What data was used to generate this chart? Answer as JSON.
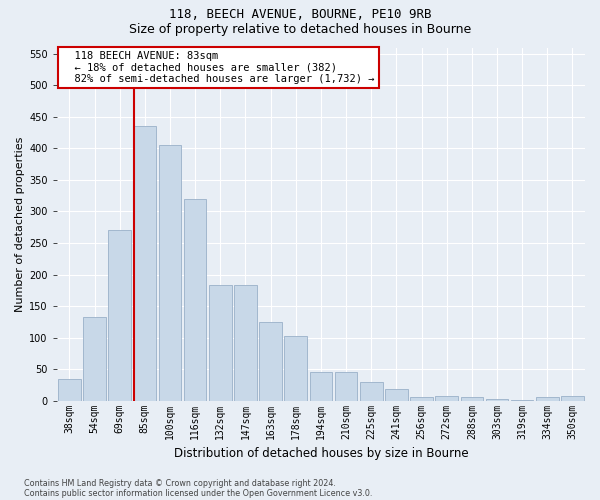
{
  "title1": "118, BEECH AVENUE, BOURNE, PE10 9RB",
  "title2": "Size of property relative to detached houses in Bourne",
  "xlabel": "Distribution of detached houses by size in Bourne",
  "ylabel": "Number of detached properties",
  "footer1": "Contains HM Land Registry data © Crown copyright and database right 2024.",
  "footer2": "Contains public sector information licensed under the Open Government Licence v3.0.",
  "annotation_line1": "  118 BEECH AVENUE: 83sqm",
  "annotation_line2": "  ← 18% of detached houses are smaller (382)",
  "annotation_line3": "  82% of semi-detached houses are larger (1,732) →",
  "bar_color": "#c8d8e8",
  "bar_edge_color": "#9ab0c8",
  "vline_color": "#cc0000",
  "vline_x_idx": 3,
  "categories": [
    "38sqm",
    "54sqm",
    "69sqm",
    "85sqm",
    "100sqm",
    "116sqm",
    "132sqm",
    "147sqm",
    "163sqm",
    "178sqm",
    "194sqm",
    "210sqm",
    "225sqm",
    "241sqm",
    "256sqm",
    "272sqm",
    "288sqm",
    "303sqm",
    "319sqm",
    "334sqm",
    "350sqm"
  ],
  "values": [
    35,
    133,
    270,
    435,
    405,
    320,
    184,
    184,
    125,
    103,
    45,
    45,
    30,
    18,
    6,
    8,
    5,
    3,
    1,
    5,
    7
  ],
  "ylim": [
    0,
    560
  ],
  "yticks": [
    0,
    50,
    100,
    150,
    200,
    250,
    300,
    350,
    400,
    450,
    500,
    550
  ],
  "background_color": "#e8eef5",
  "plot_bg_color": "#e8eef5",
  "grid_color": "#ffffff",
  "title1_fontsize": 9,
  "title2_fontsize": 9,
  "ylabel_fontsize": 8,
  "xlabel_fontsize": 8.5,
  "tick_fontsize": 7,
  "footer_fontsize": 5.8
}
